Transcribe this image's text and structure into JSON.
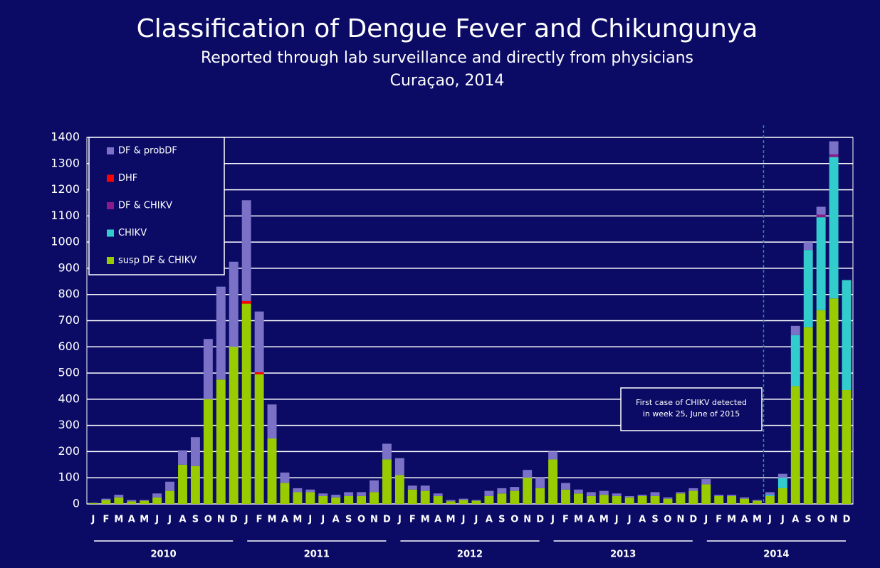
{
  "chart_data": {
    "type": "stacked_bar",
    "title": "Classification of Dengue Fever and Chikungunya",
    "subtitle": [
      "Reported through lab surveillance and directly from physicians",
      "Curaçao, 2014"
    ],
    "categories": [
      "J",
      "F",
      "M",
      "A",
      "M",
      "J",
      "J",
      "A",
      "S",
      "O",
      "N",
      "D",
      "J",
      "F",
      "M",
      "A",
      "M",
      "J",
      "J",
      "A",
      "S",
      "O",
      "N",
      "D",
      "J",
      "F",
      "M",
      "A",
      "M",
      "J",
      "J",
      "A",
      "S",
      "O",
      "N",
      "D",
      "J",
      "F",
      "M",
      "A",
      "M",
      "J",
      "J",
      "A",
      "S",
      "O",
      "N",
      "D",
      "J",
      "F",
      "M",
      "A",
      "M",
      "J",
      "J",
      "A",
      "S",
      "O",
      "N",
      "D"
    ],
    "years": [
      "2010",
      "2011",
      "2012",
      "2013",
      "2014"
    ],
    "series": [
      {
        "name": "susp DF & CHIKV",
        "color": "#99cc00",
        "values": [
          3,
          15,
          25,
          10,
          12,
          25,
          50,
          150,
          145,
          400,
          475,
          600,
          765,
          495,
          250,
          80,
          45,
          45,
          30,
          25,
          30,
          30,
          45,
          170,
          110,
          55,
          50,
          30,
          10,
          15,
          12,
          30,
          40,
          50,
          100,
          60,
          170,
          55,
          40,
          30,
          35,
          30,
          25,
          30,
          30,
          20,
          40,
          50,
          75,
          30,
          30,
          20,
          12,
          30,
          60,
          450,
          675,
          740,
          785,
          435
        ]
      },
      {
        "name": "CHIKV",
        "color": "#33cccc",
        "values": [
          0,
          0,
          0,
          0,
          0,
          0,
          0,
          0,
          0,
          0,
          0,
          0,
          0,
          0,
          0,
          0,
          0,
          0,
          0,
          0,
          0,
          0,
          0,
          0,
          0,
          0,
          0,
          0,
          0,
          0,
          0,
          0,
          0,
          0,
          0,
          0,
          0,
          0,
          0,
          0,
          0,
          0,
          0,
          0,
          0,
          0,
          0,
          0,
          0,
          0,
          0,
          0,
          0,
          5,
          40,
          195,
          295,
          355,
          540,
          420
        ]
      },
      {
        "name": "DF & CHIKV",
        "color": "#8b1a8b",
        "values": [
          0,
          0,
          0,
          0,
          0,
          0,
          0,
          0,
          0,
          0,
          0,
          0,
          0,
          0,
          0,
          0,
          0,
          0,
          0,
          0,
          0,
          0,
          0,
          0,
          0,
          0,
          0,
          0,
          0,
          0,
          0,
          0,
          0,
          0,
          0,
          0,
          0,
          0,
          0,
          0,
          0,
          0,
          0,
          0,
          0,
          0,
          0,
          0,
          0,
          0,
          0,
          0,
          0,
          0,
          0,
          0,
          0,
          10,
          10,
          0
        ]
      },
      {
        "name": "DHF",
        "color": "#ff0000",
        "values": [
          0,
          0,
          0,
          0,
          0,
          0,
          0,
          0,
          0,
          0,
          0,
          0,
          10,
          8,
          0,
          0,
          0,
          0,
          0,
          0,
          0,
          0,
          0,
          0,
          0,
          0,
          0,
          0,
          0,
          0,
          0,
          0,
          0,
          0,
          0,
          0,
          0,
          0,
          0,
          0,
          0,
          0,
          0,
          0,
          0,
          0,
          0,
          0,
          0,
          0,
          0,
          0,
          0,
          0,
          0,
          0,
          0,
          0,
          0,
          0
        ]
      },
      {
        "name": "DF & probDF",
        "color": "#7b72c8",
        "values": [
          2,
          5,
          10,
          5,
          3,
          15,
          35,
          55,
          110,
          230,
          355,
          325,
          385,
          232,
          130,
          40,
          15,
          10,
          10,
          10,
          15,
          15,
          45,
          60,
          65,
          15,
          20,
          10,
          5,
          5,
          3,
          20,
          20,
          15,
          30,
          40,
          30,
          25,
          15,
          15,
          15,
          10,
          5,
          5,
          15,
          5,
          5,
          10,
          20,
          5,
          5,
          5,
          3,
          10,
          15,
          35,
          30,
          30,
          50,
          0
        ]
      }
    ],
    "ylim": [
      0,
      1400
    ],
    "yticks": [
      0,
      100,
      200,
      300,
      400,
      500,
      600,
      700,
      800,
      900,
      1000,
      1100,
      1200,
      1300,
      1400
    ],
    "grid": true,
    "legend": "upper left",
    "annotation": [
      "First case of CHIKV detected",
      "in week 25, June of 2015"
    ]
  }
}
